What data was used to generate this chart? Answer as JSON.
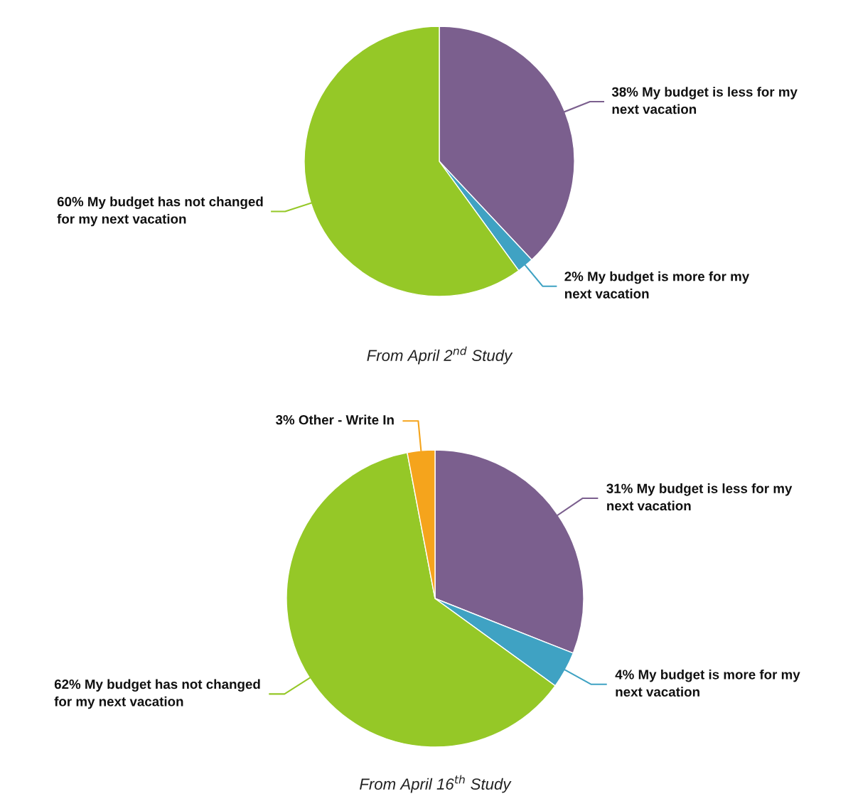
{
  "chart_data": [
    {
      "type": "pie",
      "title": "From April 2$^{nd}$ Study",
      "categories": [
        "My budget is less for my\nnext vacation",
        "My budget is more for my\nnext vacation",
        "My budget has not changed\nfor my next vacation"
      ],
      "values": [
        38,
        2,
        60
      ],
      "value_labels": [
        "38%",
        "2%",
        "60%"
      ],
      "colors": [
        "#7b5f8e",
        "#3fa2c3",
        "#95c827"
      ],
      "legend": false
    },
    {
      "type": "pie",
      "title": "From April 16$^{th}$ Study",
      "categories": [
        "My budget is less for my\nnext vacation",
        "My budget is more for my\nnext vacation",
        "My budget has not changed\nfor my next vacation",
        "Other - Write In"
      ],
      "values": [
        31,
        4,
        62,
        3
      ],
      "value_labels": [
        "31%",
        "4%",
        "62%",
        "3%"
      ],
      "colors": [
        "#7b5f8e",
        "#3fa2c3",
        "#95c827",
        "#f5a41c"
      ],
      "legend": false
    }
  ]
}
